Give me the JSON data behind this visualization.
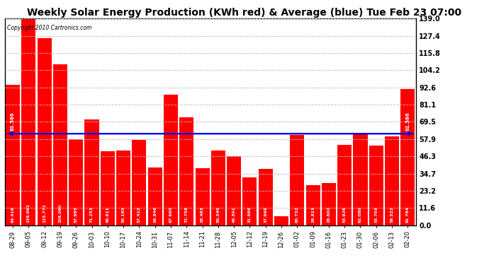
{
  "title": "Weekly Solar Energy Production (KWh red) & Average (blue) Tue Feb 23 07:00",
  "copyright": "Copyright 2010 Cartronics.com",
  "categories": [
    "08-29",
    "09-05",
    "09-12",
    "09-19",
    "09-26",
    "10-03",
    "10-10",
    "10-17",
    "10-24",
    "10-31",
    "11-07",
    "11-14",
    "11-21",
    "11-28",
    "12-05",
    "12-12",
    "12-19",
    "12-26",
    "01-02",
    "01-09",
    "01-16",
    "01-23",
    "01-30",
    "02-06",
    "02-13",
    "02-20"
  ],
  "values": [
    94.416,
    138.963,
    125.771,
    108.08,
    57.985,
    71.253,
    49.811,
    50.165,
    57.412,
    38.846,
    87.99,
    72.758,
    38.493,
    50.34,
    46.501,
    31.966,
    37.969,
    6.079,
    60.732,
    26.813,
    28.602,
    53.926,
    62.08,
    53.703,
    59.522,
    91.764
  ],
  "average": 61.586,
  "bar_color": "#FF0000",
  "average_color": "#0000EE",
  "background_color": "#FFFFFF",
  "plot_bg_color": "#FFFFFF",
  "grid_color": "#BBBBBB",
  "title_fontsize": 10,
  "yticks": [
    0.0,
    11.6,
    23.2,
    34.7,
    46.3,
    57.9,
    69.5,
    81.1,
    92.6,
    104.2,
    115.8,
    127.4,
    139.0
  ],
  "ymax": 139.0,
  "ymin": 0.0
}
